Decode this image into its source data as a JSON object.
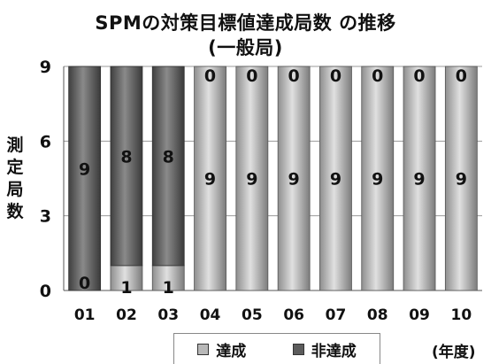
{
  "chart_data": {
    "type": "bar",
    "stacked": true,
    "title": "SPMの対策目標値達成局数 の推移",
    "subtitle": "(一般局)",
    "ylabel": "測定局数",
    "xunit": "(年度)",
    "categories": [
      "01",
      "02",
      "03",
      "04",
      "05",
      "06",
      "07",
      "08",
      "09",
      "10"
    ],
    "series": [
      {
        "name": "達成",
        "values": [
          0,
          1,
          1,
          9,
          9,
          9,
          9,
          9,
          9,
          9
        ],
        "color": "#b8b8b8"
      },
      {
        "name": "非達成",
        "values": [
          9,
          8,
          8,
          0,
          0,
          0,
          0,
          0,
          0,
          0
        ],
        "color": "#5c5c5c"
      }
    ],
    "ylim": [
      0,
      9
    ],
    "yticks": [
      0,
      3,
      6,
      9
    ],
    "grid": true,
    "legend_position": "bottom"
  }
}
